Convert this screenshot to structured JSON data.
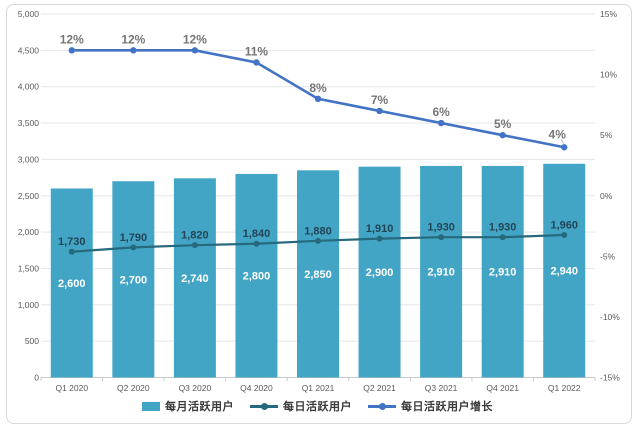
{
  "chart_data": {
    "type": "combo",
    "title": "",
    "categories": [
      "Q1 2020",
      "Q2 2020",
      "Q3 2020",
      "Q4 2020",
      "Q1 2021",
      "Q2 2021",
      "Q3 2021",
      "Q4 2021",
      "Q1 2022"
    ],
    "series": [
      {
        "name": "每月活跃用户",
        "type": "bar",
        "axis": "left",
        "color": "#43a5c5",
        "label_color": "#ffffff",
        "values": [
          2600,
          2700,
          2740,
          2800,
          2850,
          2900,
          2910,
          2910,
          2940
        ],
        "labels": [
          "2,600",
          "2,700",
          "2,740",
          "2,800",
          "2,850",
          "2,900",
          "2,910",
          "2,910",
          "2,940"
        ]
      },
      {
        "name": "每日活跃用户",
        "type": "line",
        "axis": "left",
        "color": "#26697c",
        "label_color": "#224556",
        "values": [
          1730,
          1790,
          1820,
          1840,
          1880,
          1910,
          1930,
          1930,
          1960
        ],
        "labels": [
          "1,730",
          "1,790",
          "1,820",
          "1,840",
          "1,880",
          "1,910",
          "1,930",
          "1,930",
          "1,960"
        ]
      },
      {
        "name": "每日活跃用户增长",
        "type": "line",
        "axis": "right",
        "color": "#4273c4",
        "label_color": "#767676",
        "values": [
          12,
          12,
          12,
          11,
          8,
          7,
          6,
          5,
          4
        ],
        "labels": [
          "12%",
          "12%",
          "12%",
          "11%",
          "8%",
          "7%",
          "6%",
          "5%",
          "4%"
        ]
      }
    ],
    "left_axis": {
      "min": 0,
      "max": 5000,
      "step": 500,
      "tick_labels": [
        "0",
        "500",
        "1,000",
        "1,500",
        "2,000",
        "2,500",
        "3,000",
        "3,500",
        "4,000",
        "4,500",
        "5,000"
      ]
    },
    "right_axis": {
      "min": -15,
      "max": 15,
      "step": 5,
      "tick_labels": [
        "-15%",
        "-10%",
        "-5%",
        "0%",
        "5%",
        "10%",
        "15%"
      ]
    },
    "legend_position": "bottom",
    "grid": true,
    "colors": {
      "grid": "#e3e6eb",
      "axis_line": "#c6c9ce",
      "tick_label": "#595959",
      "frame_border": "#d8d8d8"
    }
  }
}
